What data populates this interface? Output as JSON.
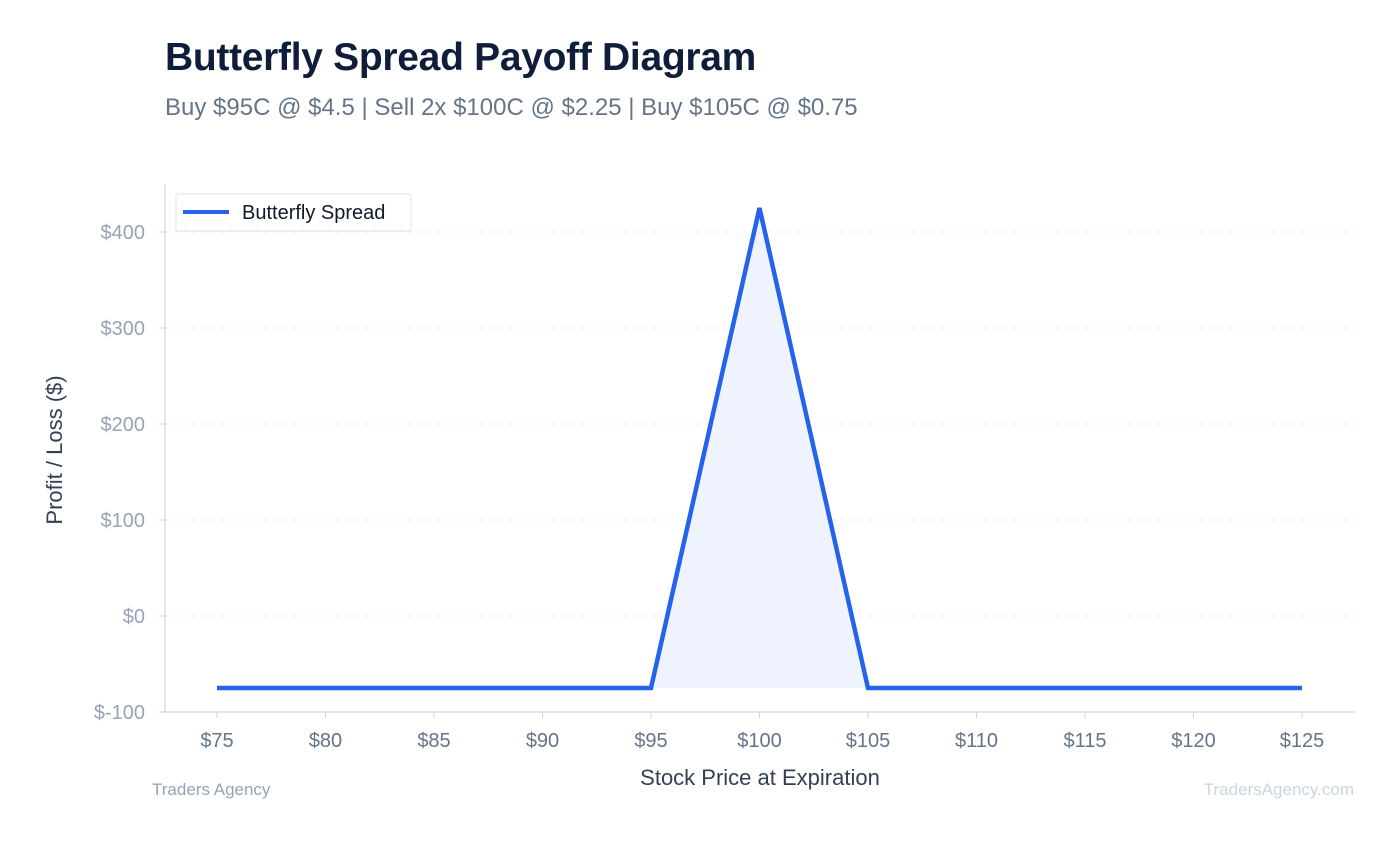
{
  "chart_data": {
    "type": "line",
    "title": "Butterfly Spread Payoff Diagram",
    "subtitle": "Buy $95C @ $4.5 | Sell 2x $100C @ $2.25 | Buy $105C @ $0.75",
    "xlabel": "Stock Price at Expiration",
    "ylabel": "Profit / Loss ($)",
    "xlim": [
      75,
      125
    ],
    "ylim": [
      -100,
      450
    ],
    "x_ticks": [
      75,
      80,
      85,
      90,
      95,
      100,
      105,
      110,
      115,
      120,
      125
    ],
    "x_tick_labels": [
      "$75",
      "$80",
      "$85",
      "$90",
      "$95",
      "$100",
      "$105",
      "$110",
      "$115",
      "$120",
      "$125"
    ],
    "y_ticks": [
      -100,
      0,
      100,
      200,
      300,
      400
    ],
    "y_tick_labels": [
      "$-100",
      "$0",
      "$100",
      "$200",
      "$300",
      "$400"
    ],
    "grid": true,
    "legend_position": "top-left",
    "series": [
      {
        "name": "Butterfly Spread",
        "color": "#2563eb",
        "fill_color": "#eef3fd",
        "x": [
          75,
          95,
          100,
          105,
          125
        ],
        "y": [
          -75,
          -75,
          425,
          -75,
          -75
        ]
      }
    ]
  },
  "footer": {
    "left": "Traders Agency",
    "right": "TradersAgency.com"
  }
}
